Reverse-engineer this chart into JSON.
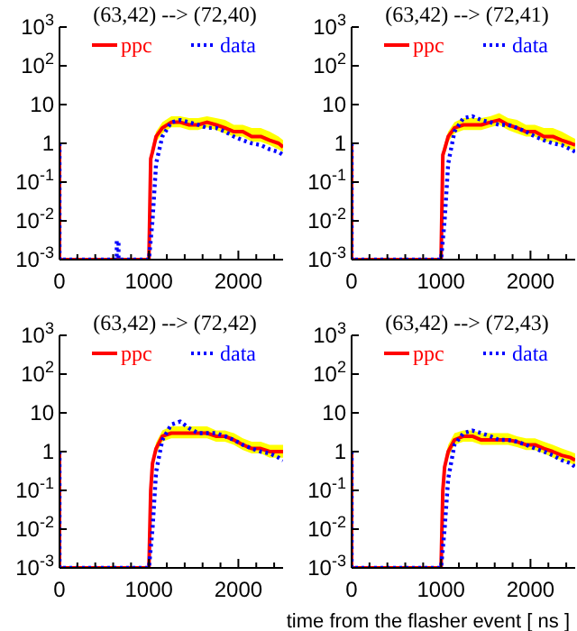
{
  "chart_data": [
    {
      "type": "line",
      "title": "(63,42) --> (72,40)",
      "log": "y",
      "xlim": [
        0,
        2500
      ],
      "ylim": [
        0.001,
        1000
      ],
      "legend": "top",
      "grid": false,
      "marker": "none",
      "xticks": [
        0,
        {
          "value": 200,
          "label": null
        },
        {
          "value": 400,
          "label": null
        },
        {
          "value": 600,
          "label": null
        },
        {
          "value": 800,
          "label": null
        },
        1000,
        {
          "value": 1200,
          "label": null
        },
        {
          "value": 1400,
          "label": null
        },
        {
          "value": 1600,
          "label": null
        },
        {
          "value": 1800,
          "label": null
        },
        2000,
        {
          "value": 2200,
          "label": null
        },
        {
          "value": 2400,
          "label": null
        }
      ],
      "yticks": [
        {
          "value": 0.001,
          "label": "10$^{-3}$"
        },
        {
          "value": 0.01,
          "label": "10$^{-2}$"
        },
        {
          "value": 0.1,
          "label": "10$^{-1}$"
        },
        {
          "value": 1,
          "label": "1"
        },
        {
          "value": 10,
          "label": "10"
        },
        {
          "value": 100,
          "label": "10$^{2}$"
        },
        {
          "value": 1000,
          "label": "10$^{3}$"
        }
      ],
      "series": [
        {
          "name": "ppc",
          "color": "#ff0000",
          "line_style": "solid",
          "x": [
            0,
            0,
            1000,
            1020,
            1040,
            1080,
            1150,
            1250,
            1350,
            1450,
            1550,
            1650,
            1750,
            1850,
            1950,
            2050,
            2150,
            2250,
            2350,
            2450,
            2500
          ],
          "values": [
            1,
            0.001,
            0.001,
            0.4,
            0.6,
            1.5,
            2.5,
            3.5,
            3.5,
            3,
            3,
            3.5,
            3,
            2.5,
            2,
            2,
            1.5,
            1.5,
            1.2,
            1,
            0.8
          ],
          "upper": [
            null,
            null,
            null,
            0.6,
            0.9,
            2,
            3.5,
            5,
            5,
            4.5,
            4.5,
            5,
            4.5,
            4,
            3,
            3,
            2.5,
            2.5,
            2,
            1.5,
            1.2
          ],
          "lower": [
            null,
            null,
            null,
            0.3,
            0.4,
            1.1,
            1.8,
            2.6,
            2.6,
            2.2,
            2.2,
            2.6,
            2.2,
            1.8,
            1.5,
            1.5,
            1.1,
            1.1,
            0.9,
            0.7,
            0.6
          ]
        },
        {
          "name": "data",
          "color": "#0000ff",
          "line_style": "dotted",
          "x": [
            0,
            0,
            640,
            640,
            660,
            660,
            1000,
            1040,
            1080,
            1150,
            1250,
            1350,
            1450,
            1550,
            1650,
            1750,
            1850,
            1950,
            2050,
            2150,
            2250,
            2350,
            2450,
            2500
          ],
          "values": [
            1,
            0.001,
            0.001,
            0.003,
            0.003,
            0.001,
            0.001,
            0.01,
            0.3,
            1.5,
            3.5,
            4,
            3.5,
            3,
            2.5,
            2.5,
            2,
            1.5,
            1.2,
            1,
            0.9,
            0.7,
            0.6,
            0.5
          ]
        }
      ]
    },
    {
      "type": "line",
      "title": "(63,42) --> (72,41)",
      "log": "y",
      "xlim": [
        0,
        2500
      ],
      "ylim": [
        0.001,
        1000
      ],
      "legend": "top",
      "grid": false,
      "marker": "none",
      "xticks": [
        0,
        {
          "value": 200,
          "label": null
        },
        {
          "value": 400,
          "label": null
        },
        {
          "value": 600,
          "label": null
        },
        {
          "value": 800,
          "label": null
        },
        1000,
        {
          "value": 1200,
          "label": null
        },
        {
          "value": 1400,
          "label": null
        },
        {
          "value": 1600,
          "label": null
        },
        {
          "value": 1800,
          "label": null
        },
        2000,
        {
          "value": 2200,
          "label": null
        },
        {
          "value": 2400,
          "label": null
        }
      ],
      "yticks": [
        {
          "value": 0.001,
          "label": "10$^{-3}$"
        },
        {
          "value": 0.01,
          "label": "10$^{-2}$"
        },
        {
          "value": 0.1,
          "label": "10$^{-1}$"
        },
        {
          "value": 1,
          "label": "1"
        },
        {
          "value": 10,
          "label": "10"
        },
        {
          "value": 100,
          "label": "10$^{2}$"
        },
        {
          "value": 1000,
          "label": "10$^{3}$"
        }
      ],
      "series": [
        {
          "name": "ppc",
          "color": "#ff0000",
          "line_style": "solid",
          "x": [
            0,
            0,
            1000,
            1020,
            1040,
            1080,
            1150,
            1250,
            1350,
            1450,
            1550,
            1650,
            1750,
            1850,
            1950,
            2050,
            2150,
            2250,
            2350,
            2450,
            2500
          ],
          "values": [
            1,
            0.001,
            0.001,
            0.5,
            0.7,
            1.5,
            2.5,
            3,
            3,
            3,
            3.5,
            4,
            3,
            2.5,
            2,
            2,
            1.5,
            1.5,
            1.2,
            1,
            0.9
          ],
          "upper": [
            null,
            null,
            null,
            0.7,
            1,
            2,
            3.5,
            4.5,
            4.5,
            4.5,
            5,
            6,
            4.5,
            4,
            3,
            3,
            2.5,
            2.5,
            2,
            1.5,
            1.3
          ],
          "lower": [
            null,
            null,
            null,
            0.35,
            0.5,
            1.1,
            1.8,
            2.2,
            2.2,
            2.2,
            2.6,
            3,
            2.2,
            1.8,
            1.5,
            1.5,
            1.1,
            1.1,
            0.9,
            0.7,
            0.65
          ]
        },
        {
          "name": "data",
          "color": "#0000ff",
          "line_style": "dotted",
          "x": [
            0,
            0,
            1000,
            1040,
            1080,
            1150,
            1250,
            1350,
            1450,
            1550,
            1650,
            1750,
            1850,
            1950,
            2050,
            2150,
            2250,
            2350,
            2450,
            2500
          ],
          "values": [
            1,
            0.001,
            0.001,
            0.01,
            0.3,
            2,
            4.5,
            5,
            4,
            3.5,
            3,
            3,
            2.5,
            2,
            1.5,
            1.2,
            1,
            0.9,
            0.7,
            0.6
          ]
        }
      ]
    },
    {
      "type": "line",
      "title": "(63,42) --> (72,42)",
      "log": "y",
      "xlim": [
        0,
        2500
      ],
      "ylim": [
        0.001,
        1000
      ],
      "legend": "top",
      "grid": false,
      "marker": "none",
      "xticks": [
        0,
        {
          "value": 200,
          "label": null
        },
        {
          "value": 400,
          "label": null
        },
        {
          "value": 600,
          "label": null
        },
        {
          "value": 800,
          "label": null
        },
        1000,
        {
          "value": 1200,
          "label": null
        },
        {
          "value": 1400,
          "label": null
        },
        {
          "value": 1600,
          "label": null
        },
        {
          "value": 1800,
          "label": null
        },
        2000,
        {
          "value": 2200,
          "label": null
        },
        {
          "value": 2400,
          "label": null
        }
      ],
      "yticks": [
        {
          "value": 0.001,
          "label": "10$^{-3}$"
        },
        {
          "value": 0.01,
          "label": "10$^{-2}$"
        },
        {
          "value": 0.1,
          "label": "10$^{-1}$"
        },
        {
          "value": 1,
          "label": "1"
        },
        {
          "value": 10,
          "label": "10"
        },
        {
          "value": 100,
          "label": "10$^{2}$"
        },
        {
          "value": 1000,
          "label": "10$^{3}$"
        }
      ],
      "series": [
        {
          "name": "ppc",
          "color": "#ff0000",
          "line_style": "solid",
          "x": [
            0,
            0,
            1000,
            1020,
            1040,
            1080,
            1150,
            1250,
            1350,
            1450,
            1550,
            1650,
            1750,
            1850,
            1950,
            2050,
            2150,
            2250,
            2350,
            2450,
            2500
          ],
          "values": [
            1,
            0.001,
            0.001,
            0.1,
            0.5,
            1.2,
            2.5,
            3,
            3,
            3,
            3,
            3,
            2.5,
            2.5,
            2,
            1.5,
            1.2,
            1.2,
            1,
            1,
            1
          ],
          "upper": [
            null,
            null,
            null,
            0.15,
            0.7,
            1.7,
            3.5,
            4.5,
            4.5,
            4.5,
            4.5,
            4.5,
            3.5,
            3.5,
            3,
            2.2,
            1.8,
            1.8,
            1.5,
            1.5,
            1.5
          ],
          "lower": [
            null,
            null,
            null,
            0.07,
            0.35,
            0.9,
            1.8,
            2.2,
            2.2,
            2.2,
            2.2,
            2.2,
            1.8,
            1.8,
            1.5,
            1.1,
            0.9,
            0.9,
            0.7,
            0.7,
            0.7
          ]
        },
        {
          "name": "data",
          "color": "#0000ff",
          "line_style": "dotted",
          "x": [
            0,
            0,
            1000,
            1040,
            1080,
            1150,
            1250,
            1350,
            1450,
            1550,
            1650,
            1750,
            1850,
            1950,
            2050,
            2150,
            2250,
            2350,
            2450,
            2500
          ],
          "values": [
            1,
            0.001,
            0.001,
            0.01,
            0.3,
            2,
            5,
            6,
            4,
            3,
            3,
            3,
            2.5,
            2,
            1.5,
            1.2,
            1,
            0.9,
            0.7,
            0.6
          ]
        }
      ]
    },
    {
      "type": "line",
      "title": "(63,42) --> (72,43)",
      "xlabel": "time from the flasher event [ ns ]",
      "log": "y",
      "xlim": [
        0,
        2500
      ],
      "ylim": [
        0.001,
        1000
      ],
      "legend": "top",
      "grid": false,
      "marker": "none",
      "xticks": [
        0,
        {
          "value": 200,
          "label": null
        },
        {
          "value": 400,
          "label": null
        },
        {
          "value": 600,
          "label": null
        },
        {
          "value": 800,
          "label": null
        },
        1000,
        {
          "value": 1200,
          "label": null
        },
        {
          "value": 1400,
          "label": null
        },
        {
          "value": 1600,
          "label": null
        },
        {
          "value": 1800,
          "label": null
        },
        2000,
        {
          "value": 2200,
          "label": null
        },
        {
          "value": 2400,
          "label": null
        }
      ],
      "yticks": [
        {
          "value": 0.001,
          "label": "10$^{-3}$"
        },
        {
          "value": 0.01,
          "label": "10$^{-2}$"
        },
        {
          "value": 0.1,
          "label": "10$^{-1}$"
        },
        {
          "value": 1,
          "label": "1"
        },
        {
          "value": 10,
          "label": "10"
        },
        {
          "value": 100,
          "label": "10$^{2}$"
        },
        {
          "value": 1000,
          "label": "10$^{3}$"
        }
      ],
      "series": [
        {
          "name": "ppc",
          "color": "#ff0000",
          "line_style": "solid",
          "x": [
            0,
            0,
            1000,
            1020,
            1040,
            1080,
            1150,
            1250,
            1350,
            1450,
            1550,
            1650,
            1750,
            1850,
            1950,
            2050,
            2150,
            2250,
            2350,
            2450,
            2500
          ],
          "values": [
            1,
            0.001,
            0.001,
            0.1,
            0.4,
            1,
            2,
            2.5,
            2.5,
            2,
            2,
            2,
            2,
            1.8,
            1.5,
            1.5,
            1.2,
            1,
            0.8,
            0.7,
            0.6
          ],
          "upper": [
            null,
            null,
            null,
            0.15,
            0.6,
            1.5,
            3,
            3.5,
            3.5,
            3,
            3,
            3,
            3,
            2.5,
            2.2,
            2.2,
            1.8,
            1.5,
            1.2,
            1,
            0.9
          ],
          "lower": [
            null,
            null,
            null,
            0.07,
            0.3,
            0.7,
            1.5,
            1.8,
            1.8,
            1.5,
            1.5,
            1.5,
            1.5,
            1.3,
            1.1,
            1.1,
            0.9,
            0.7,
            0.6,
            0.5,
            0.45
          ]
        },
        {
          "name": "data",
          "color": "#0000ff",
          "line_style": "dotted",
          "x": [
            0,
            0,
            1000,
            1040,
            1080,
            1150,
            1250,
            1350,
            1450,
            1550,
            1650,
            1750,
            1850,
            1950,
            2050,
            2150,
            2250,
            2350,
            2450,
            2500
          ],
          "values": [
            1,
            0.001,
            0.001,
            0.01,
            0.2,
            1.5,
            3,
            3.5,
            3,
            2.5,
            2,
            2,
            1.8,
            1.5,
            1.2,
            1,
            0.8,
            0.6,
            0.5,
            0.4
          ]
        }
      ]
    }
  ]
}
